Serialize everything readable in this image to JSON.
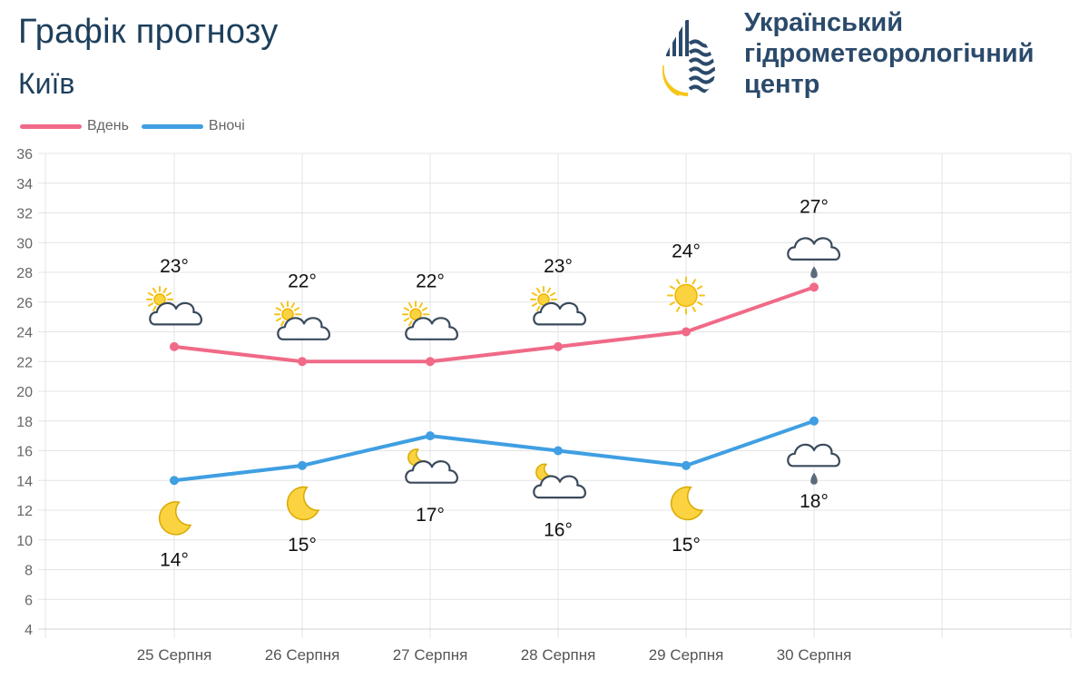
{
  "header": {
    "title": "Графік прогнозу",
    "city": "Київ"
  },
  "organization": {
    "name_lines": [
      "Український",
      "гідрометеорологічний",
      "центр"
    ],
    "logo_icon": "water-drop-logo-icon"
  },
  "colors": {
    "day": "#f06a87",
    "night": "#3f9fe2",
    "grid": "#e4e4e4",
    "text": "#1d3f5c"
  },
  "chart_data": {
    "type": "line",
    "categories": [
      "25 Серпня",
      "26 Серпня",
      "27 Серпня",
      "28 Серпня",
      "29 Серпня",
      "30 Серпня"
    ],
    "ylim": [
      4,
      36
    ],
    "yticks": [
      4,
      6,
      8,
      10,
      12,
      14,
      16,
      18,
      20,
      22,
      24,
      26,
      28,
      30,
      32,
      34,
      36
    ],
    "grid": true,
    "legend_position": "top-left",
    "series": [
      {
        "name": "Вдень",
        "values": [
          23,
          22,
          22,
          23,
          24,
          27
        ],
        "labels": [
          "23°",
          "22°",
          "22°",
          "23°",
          "24°",
          "27°"
        ],
        "icons": [
          "partly-cloudy-icon",
          "partly-cloudy-icon",
          "partly-cloudy-icon",
          "partly-cloudy-icon",
          "sun-icon",
          "cloud-rain-icon"
        ]
      },
      {
        "name": "Вночі",
        "values": [
          14,
          15,
          17,
          16,
          15,
          18
        ],
        "labels": [
          "14°",
          "15°",
          "17°",
          "16°",
          "15°",
          "18°"
        ],
        "icons": [
          "moon-icon",
          "moon-icon",
          "moon-cloud-icon",
          "moon-cloud-icon",
          "moon-icon",
          "cloud-rain-icon"
        ]
      }
    ]
  }
}
